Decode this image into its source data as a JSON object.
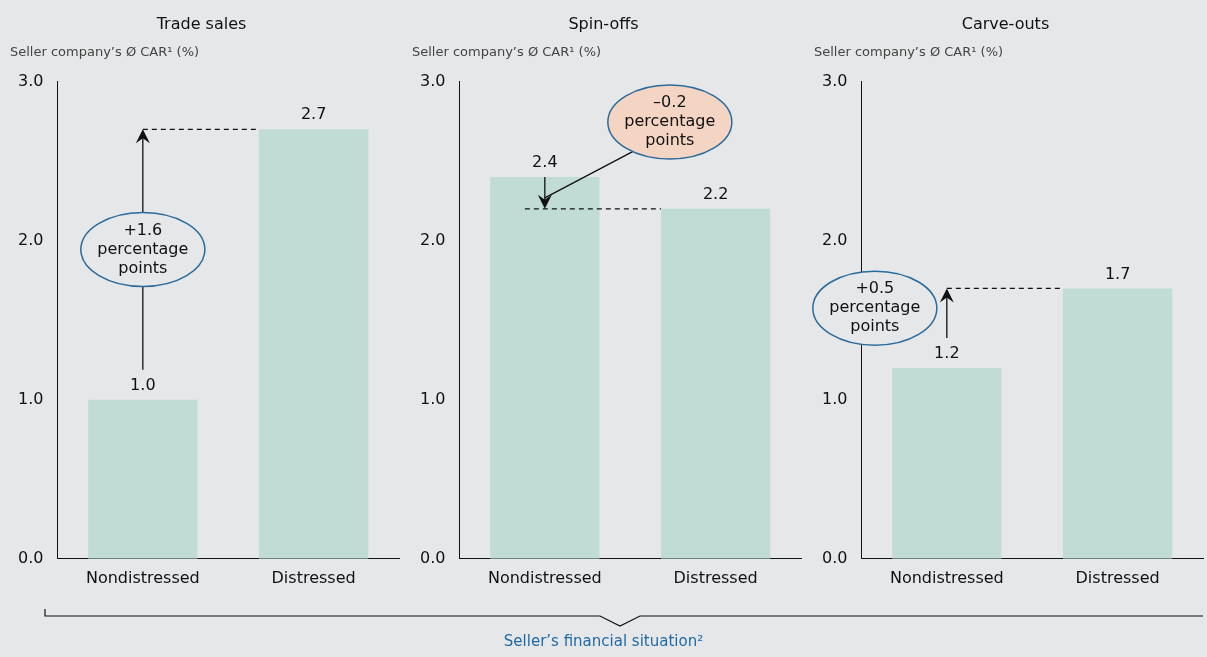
{
  "chart_data": [
    {
      "type": "bar",
      "title": "Trade sales",
      "ylabel": "Seller company’s Ø CAR¹ (%)",
      "categories": [
        "Nondistressed",
        "Distressed"
      ],
      "values": [
        1.0,
        2.7
      ],
      "value_labels": [
        "1.0",
        "2.7"
      ],
      "color": "#c0dcd5",
      "ylim": [
        0,
        3
      ],
      "yticks": [
        {
          "value": 0,
          "label": "0.0"
        },
        {
          "value": 1,
          "label": "1.0"
        },
        {
          "value": 2,
          "label": "2.0"
        },
        {
          "value": 3,
          "label": "3.0"
        }
      ],
      "annotations": [
        "+1.6 percentage points"
      ],
      "ref_lines": [
        {
          "axis": "y",
          "value": 2.7,
          "line_style": "dashed"
        }
      ]
    },
    {
      "type": "bar",
      "title": "Spin-offs",
      "ylabel": "Seller company’s Ø CAR¹ (%)",
      "xlabel": "Seller’s financial situation²",
      "categories": [
        "Nondistressed",
        "Distressed"
      ],
      "values": [
        2.4,
        2.2
      ],
      "value_labels": [
        "2.4",
        "2.2"
      ],
      "color": "#c0dcd5",
      "ylim": [
        0,
        3
      ],
      "yticks": [
        {
          "value": 0,
          "label": "0.0"
        },
        {
          "value": 1,
          "label": "1.0"
        },
        {
          "value": 2,
          "label": "2.0"
        },
        {
          "value": 3,
          "label": "3.0"
        }
      ],
      "annotations": [
        "–0.2 percentage points"
      ],
      "ref_lines": [
        {
          "axis": "y",
          "value": 2.2,
          "line_style": "dashed"
        }
      ]
    },
    {
      "type": "bar",
      "title": "Carve-outs",
      "ylabel": "Seller company’s Ø CAR¹ (%)",
      "categories": [
        "Nondistressed",
        "Distressed"
      ],
      "values": [
        1.2,
        1.7
      ],
      "value_labels": [
        "1.2",
        "1.7"
      ],
      "color": "#c0dcd5",
      "ylim": [
        0,
        3
      ],
      "yticks": [
        {
          "value": 0,
          "label": "0.0"
        },
        {
          "value": 1,
          "label": "1.0"
        },
        {
          "value": 2,
          "label": "2.0"
        },
        {
          "value": 3,
          "label": "3.0"
        }
      ],
      "annotations": [
        "+0.5 percentage points"
      ],
      "ref_lines": [
        {
          "axis": "y",
          "value": 1.7,
          "line_style": "dashed"
        }
      ]
    }
  ]
}
